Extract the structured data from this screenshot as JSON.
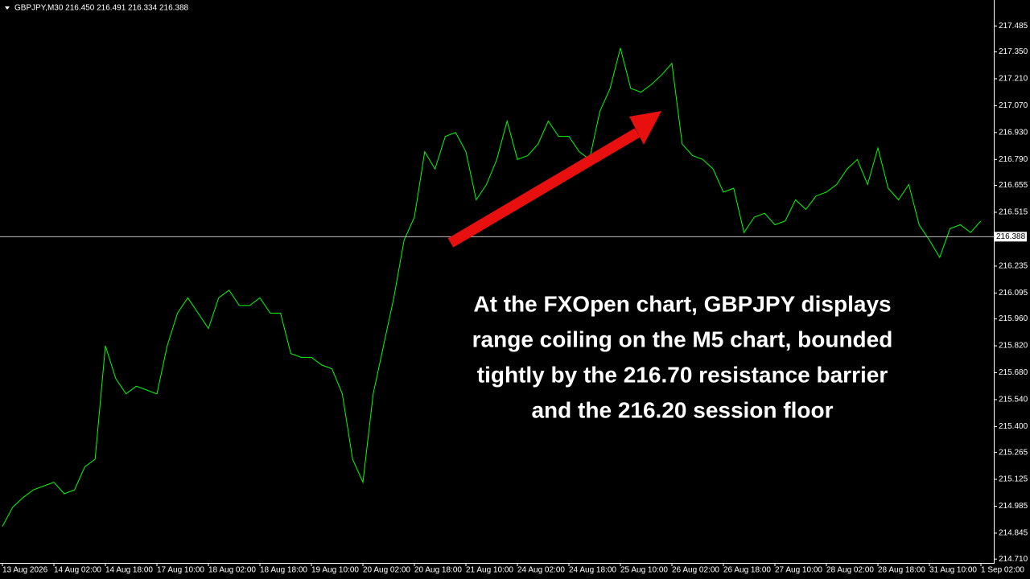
{
  "chart_data": {
    "type": "line",
    "header": "GBPJPY,M30  216.450 216.491 216.334 216.388",
    "annotation": [
      "At the FXOpen chart, GBPJPY displays",
      "range coiling on the M5 chart, bounded",
      "tightly by the 216.70 resistance barrier",
      "and the 216.20 session floor"
    ],
    "color": "#00ff00",
    "categories": [
      "13 Aug 2026",
      null,
      null,
      null,
      null,
      "14 Aug 02:00",
      null,
      null,
      null,
      null,
      "14 Aug 18:00",
      null,
      null,
      null,
      null,
      "17 Aug 10:00",
      null,
      null,
      null,
      null,
      "18 Aug 02:00",
      null,
      null,
      null,
      null,
      "18 Aug 18:00",
      null,
      null,
      null,
      null,
      "19 Aug 10:00",
      null,
      null,
      null,
      null,
      "20 Aug 02:00",
      null,
      null,
      null,
      null,
      "20 Aug 18:00",
      null,
      null,
      null,
      null,
      "21 Aug 10:00",
      null,
      null,
      null,
      null,
      "24 Aug 02:00",
      null,
      null,
      null,
      null,
      "24 Aug 18:00",
      null,
      null,
      null,
      null,
      "25 Aug 10:00",
      null,
      null,
      null,
      null,
      "26 Aug 02:00",
      null,
      null,
      null,
      null,
      "26 Aug 18:00",
      null,
      null,
      null,
      null,
      "27 Aug 10:00",
      null,
      null,
      null,
      null,
      "28 Aug 02:00",
      null,
      null,
      null,
      null,
      "28 Aug 18:00",
      null,
      null,
      null,
      null,
      "31 Aug 10:00",
      null,
      null,
      null,
      null,
      "1 Sep 02:00"
    ],
    "values": [
      214.88,
      214.98,
      215.03,
      215.07,
      215.09,
      215.11,
      215.05,
      215.07,
      215.19,
      215.23,
      215.82,
      215.65,
      215.57,
      215.61,
      215.59,
      215.57,
      215.82,
      215.99,
      216.07,
      215.99,
      215.91,
      216.07,
      216.11,
      216.03,
      216.03,
      216.07,
      215.99,
      215.99,
      215.78,
      215.76,
      215.76,
      215.72,
      215.7,
      215.57,
      215.23,
      215.11,
      215.57,
      215.82,
      216.07,
      216.37,
      216.49,
      216.83,
      216.74,
      216.91,
      216.93,
      216.83,
      216.58,
      216.66,
      216.79,
      216.99,
      216.79,
      216.81,
      216.87,
      216.99,
      216.91,
      216.91,
      216.83,
      216.79,
      217.04,
      217.16,
      217.37,
      217.16,
      217.14,
      217.18,
      217.23,
      217.29,
      216.87,
      216.81,
      216.79,
      216.74,
      216.62,
      216.64,
      216.41,
      216.49,
      216.51,
      216.45,
      216.47,
      216.58,
      216.53,
      216.6,
      216.62,
      216.66,
      216.74,
      216.79,
      216.66,
      216.85,
      216.64,
      216.58,
      216.66,
      216.45,
      216.37,
      216.28,
      216.43,
      216.45,
      216.41,
      216.47
    ],
    "current_price": {
      "value": 216.388,
      "label": "216.388"
    },
    "ylim": [
      214.69,
      217.62
    ],
    "yticks": [
      {
        "value": 217.485,
        "label": "217.485"
      },
      {
        "value": 217.35,
        "label": "217.350"
      },
      {
        "value": 217.21,
        "label": "217.210"
      },
      {
        "value": 217.07,
        "label": "217.070"
      },
      {
        "value": 216.93,
        "label": "216.930"
      },
      {
        "value": 216.79,
        "label": "216.790"
      },
      {
        "value": 216.655,
        "label": "216.655"
      },
      {
        "value": 216.515,
        "label": "216.515"
      },
      {
        "value": 216.235,
        "label": "216.235"
      },
      {
        "value": 216.095,
        "label": "216.095"
      },
      {
        "value": 215.96,
        "label": "215.960"
      },
      {
        "value": 215.82,
        "label": "215.820"
      },
      {
        "value": 215.68,
        "label": "215.680"
      },
      {
        "value": 215.54,
        "label": "215.540"
      },
      {
        "value": 215.4,
        "label": "215.400"
      },
      {
        "value": 215.265,
        "label": "215.265"
      },
      {
        "value": 215.125,
        "label": "215.125"
      },
      {
        "value": 214.985,
        "label": "214.985"
      },
      {
        "value": 214.845,
        "label": "214.845"
      },
      {
        "value": 214.71,
        "label": "214.710"
      }
    ]
  }
}
